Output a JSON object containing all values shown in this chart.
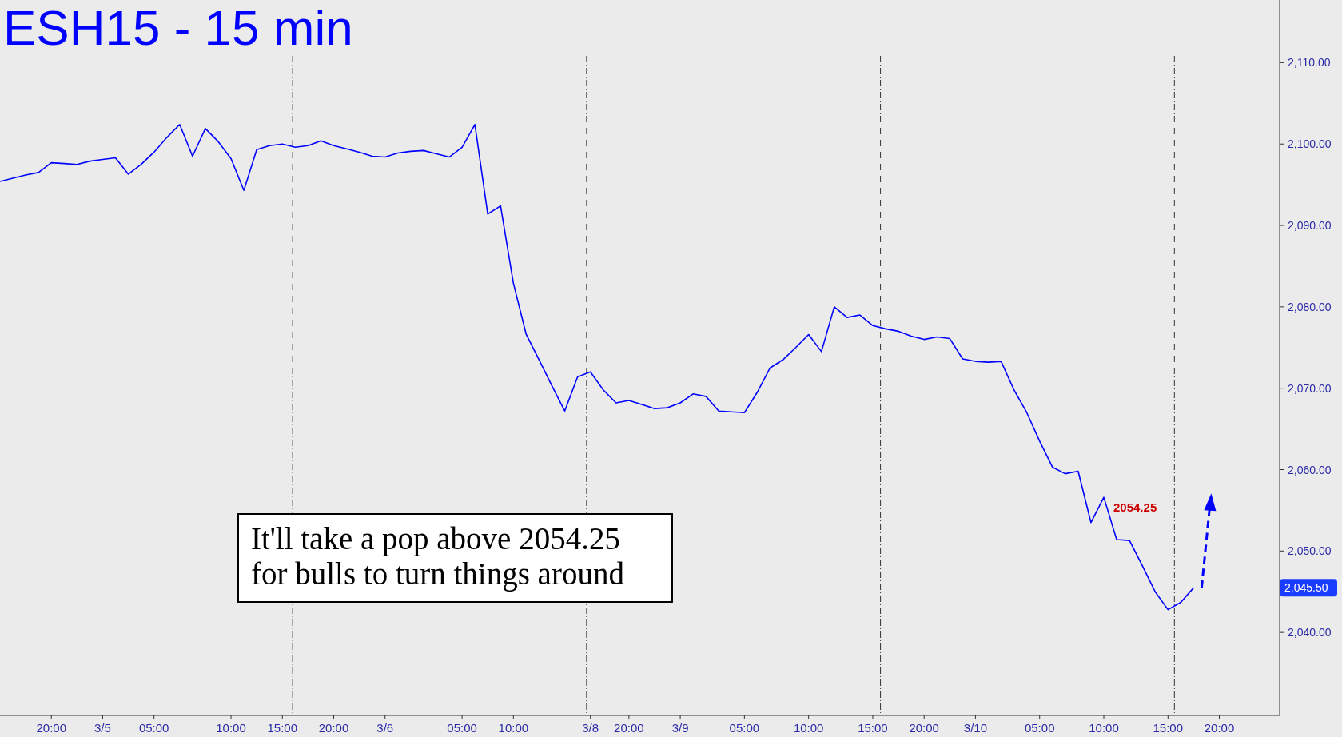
{
  "chart_data": {
    "type": "line",
    "title": "ESH15 - 15 min",
    "categories": [
      null,
      null,
      null,
      null,
      "20:00",
      null,
      null,
      null,
      "3/5",
      null,
      null,
      null,
      "05:00",
      null,
      null,
      null,
      null,
      null,
      "10:00",
      null,
      null,
      null,
      "15:00",
      null,
      null,
      null,
      "20:00",
      null,
      null,
      null,
      "3/6",
      null,
      null,
      null,
      null,
      null,
      "05:00",
      null,
      null,
      null,
      "10:00",
      null,
      null,
      null,
      null,
      null,
      "3/8",
      null,
      null,
      "20:00",
      null,
      null,
      null,
      "3/9",
      null,
      null,
      null,
      null,
      "05:00",
      null,
      null,
      null,
      null,
      "10:00",
      null,
      null,
      null,
      null,
      "15:00",
      null,
      null,
      null,
      "20:00",
      null,
      null,
      null,
      "3/10",
      null,
      null,
      null,
      null,
      "05:00",
      null,
      null,
      null,
      null,
      "10:00",
      null,
      null,
      null,
      null,
      "15:00",
      null,
      null,
      null,
      "20:00",
      null,
      null,
      null,
      null
    ],
    "series": [
      {
        "color": "#0000ff",
        "values": [
          2095.4,
          2095.8,
          2096.2,
          2096.5,
          2097.7,
          2097.6,
          2097.5,
          2097.9,
          2098.1,
          2098.3,
          2096.3,
          2097.5,
          2099,
          2100.8,
          2102.4,
          2098.5,
          2101.9,
          2100.3,
          2098.2,
          2094.3,
          2099.3,
          2099.8,
          2100,
          2099.6,
          2099.8,
          2100.4,
          2099.8,
          2099.4,
          2099,
          2098.5,
          2098.4,
          2098.9,
          2099.1,
          2099.2,
          2098.8,
          2098.4,
          2099.6,
          2102.4,
          2091.4,
          2092.4,
          2082.9,
          2076.6,
          2073.5,
          2070.3,
          2067.2,
          2071.4,
          2072,
          2069.8,
          2068.2,
          2068.5,
          2068,
          2067.5,
          2067.6,
          2068.2,
          2069.3,
          2069,
          2067.2,
          2067.1,
          2067,
          2069.5,
          2072.5,
          2073.5,
          2075,
          2076.6,
          2074.5,
          2080,
          2078.7,
          2079,
          2077.7,
          2077.3,
          2077,
          2076.4,
          2076,
          2076.3,
          2076.1,
          2073.6,
          2073.3,
          2073.2,
          2073.3,
          2069.8,
          2067,
          2063.5,
          2060.3,
          2059.5,
          2059.8,
          2053.5,
          2056.6,
          2051.4,
          2051.3,
          2048.2,
          2045,
          2042.8,
          2043.7,
          2045.5,
          null,
          null,
          null,
          null,
          null,
          null
        ]
      }
    ],
    "ylim": [
      2029.8,
      2117.7
    ],
    "yticks": [
      {
        "value": 2040,
        "label": "2,040.00"
      },
      {
        "value": 2050,
        "label": "2,050.00"
      },
      {
        "value": 2060,
        "label": "2,060.00"
      },
      {
        "value": 2070,
        "label": "2,070.00"
      },
      {
        "value": 2080,
        "label": "2,080.00"
      },
      {
        "value": 2090,
        "label": "2,090.00"
      },
      {
        "value": 2100,
        "label": "2,100.00"
      },
      {
        "value": 2110,
        "label": "2,110.00"
      }
    ],
    "annotations": [
      "It'll take a pop above 2054.25\nfor bulls to turn things around",
      "2054.25",
      "2,045.50"
    ],
    "line_style": "solid",
    "marker": "none",
    "grid": false
  }
}
